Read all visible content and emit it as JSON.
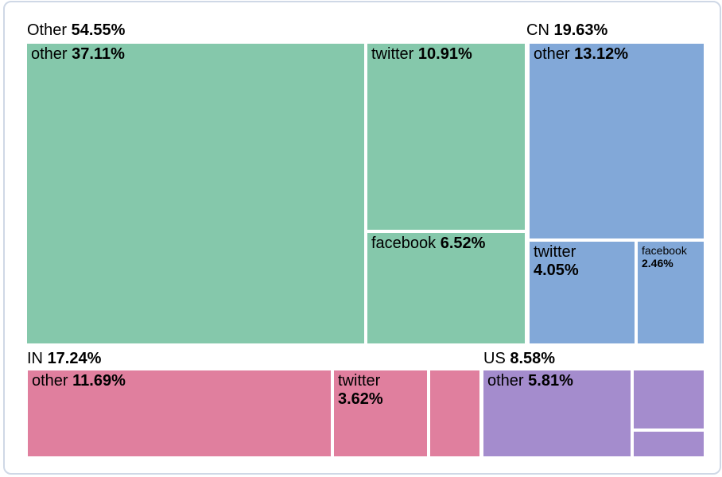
{
  "colors": {
    "background": "#ffffff",
    "card_border": "#cfd8e6",
    "text": "#000000",
    "group_other": "#85c8ab",
    "group_cn": "#82a8d8",
    "group_in": "#e07f9e",
    "group_us": "#a48ccd"
  },
  "chart_data": {
    "type": "treemap",
    "unit": "%",
    "legend_position": "none",
    "groups": [
      {
        "name": "Other",
        "value": 54.55,
        "pct_label": "54.55%",
        "color": "#85c8ab",
        "children": [
          {
            "name": "other",
            "value": 37.11,
            "pct_label": "37.11%"
          },
          {
            "name": "twitter",
            "value": 10.91,
            "pct_label": "10.91%"
          },
          {
            "name": "facebook",
            "value": 6.52,
            "pct_label": "6.52%"
          }
        ]
      },
      {
        "name": "CN",
        "value": 19.63,
        "pct_label": "19.63%",
        "color": "#82a8d8",
        "children": [
          {
            "name": "other",
            "value": 13.12,
            "pct_label": "13.12%"
          },
          {
            "name": "twitter",
            "value": 4.05,
            "pct_label": "4.05%"
          },
          {
            "name": "facebook",
            "value": 2.46,
            "pct_label": "2.46%"
          }
        ]
      },
      {
        "name": "IN",
        "value": 17.24,
        "pct_label": "17.24%",
        "color": "#e07f9e",
        "children": [
          {
            "name": "other",
            "value": 11.69,
            "pct_label": "11.69%"
          },
          {
            "name": "twitter",
            "value": 3.62,
            "pct_label": "3.62%"
          },
          {
            "name": "",
            "pct_label": ""
          }
        ]
      },
      {
        "name": "US",
        "value": 8.58,
        "pct_label": "8.58%",
        "color": "#a48ccd",
        "children": [
          {
            "name": "other",
            "value": 5.81,
            "pct_label": "5.81%"
          },
          {
            "name": "",
            "pct_label": ""
          },
          {
            "name": "",
            "pct_label": ""
          }
        ]
      }
    ]
  }
}
